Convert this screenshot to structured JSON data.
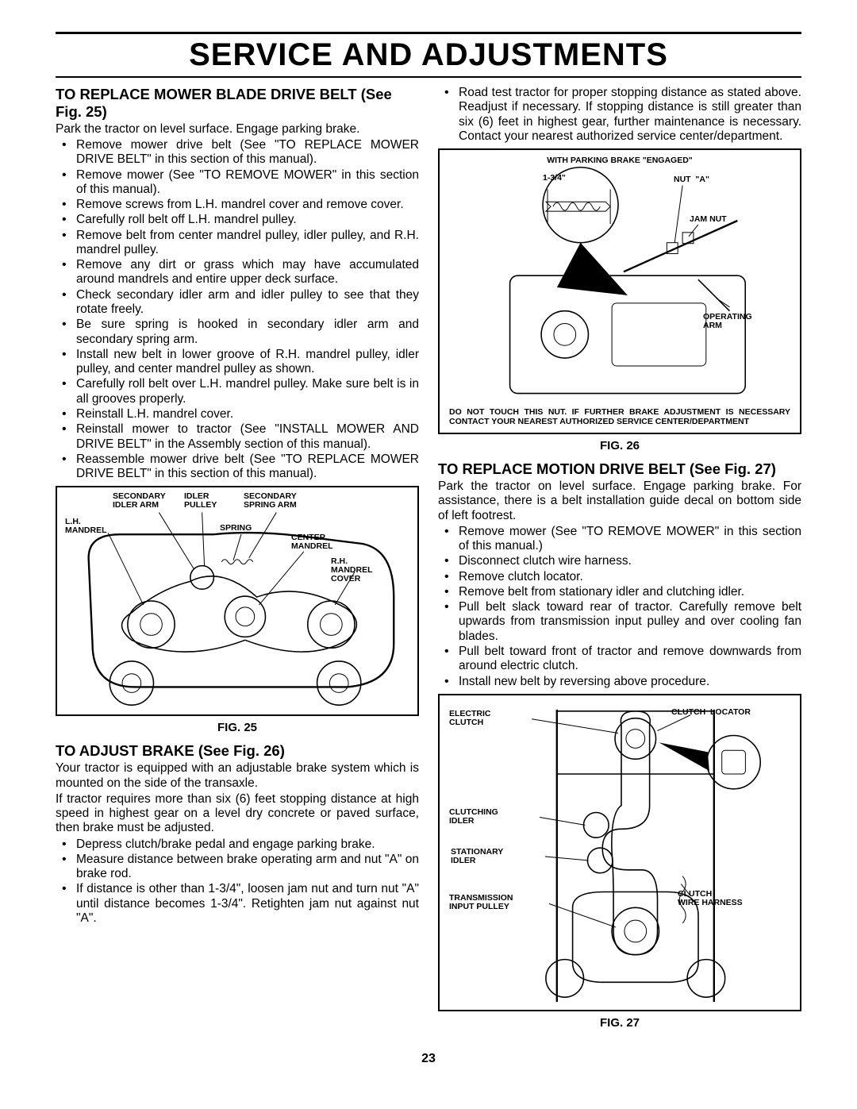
{
  "page": {
    "title": "Service And Adjustments",
    "number": "23"
  },
  "left": {
    "h1": "TO REPLACE MOWER BLADE DRIVE BELT (See Fig. 25)",
    "p1": "Park the tractor on level surface.  Engage parking brake.",
    "list1": [
      "Remove mower drive belt (See \"TO REPLACE MOWER DRIVE BELT\" in this section of this manual).",
      "Remove mower (See \"TO REMOVE MOWER\" in this section of this manual).",
      "Remove screws from L.H. mandrel cover and remove cover.",
      "Carefully roll belt off L.H. mandrel pulley.",
      "Remove belt from center mandrel pulley, idler pulley, and R.H. mandrel pulley.",
      "Remove any dirt or grass which may have accumulated around mandrels and entire upper deck surface.",
      "Check secondary idler arm and idler pulley to see that they rotate freely.",
      "Be sure spring is hooked in secondary idler arm and secondary spring arm.",
      "Install new belt in lower groove of R.H. mandrel pulley, idler pulley, and center mandrel pulley as shown.",
      "Carefully roll belt over L.H. mandrel pulley.  Make sure belt is in all grooves properly.",
      "Reinstall L.H. mandrel cover.",
      "Reinstall mower to tractor (See \"INSTALL MOWER AND DRIVE BELT\" in the Assembly section of this manual).",
      "Reassemble mower drive belt (See \"TO REPLACE MOWER DRIVE BELT\" in this section of this manual)."
    ],
    "fig25": {
      "caption": "FIG. 25",
      "labels": {
        "sec_idler_arm": "SECONDARY\nIDLER ARM",
        "idler_pulley": "IDLER\nPULLEY",
        "sec_spring_arm": "SECONDARY\nSPRING ARM",
        "lh_mandrel": "L.H.\nMANDREL",
        "spring": "SPRING",
        "center_mandrel": "CENTER\nMANDREL",
        "rh_mandrel_cover": "R.H.\nMANDREL\nCOVER"
      }
    },
    "h2": "TO ADJUST BRAKE (See Fig. 26)",
    "p2": "Your tractor is equipped with an adjustable brake system which is mounted on the side of the transaxle.",
    "p3": "If tractor requires more than six (6) feet stopping distance at high speed  in highest gear on a level dry concrete or paved surface, then brake must be adjusted.",
    "list2": [
      "Depress clutch/brake pedal and engage parking brake.",
      "Measure distance between brake operating arm and nut \"A\" on brake rod.",
      "If distance is other than 1-3/4\", loosen jam nut and turn nut \"A\" until distance becomes 1-3/4\".  Retighten jam nut against nut \"A\"."
    ]
  },
  "right": {
    "list0": [
      "Road test tractor for proper stopping distance as stated above.  Readjust if necessary.  If stopping distance is still greater than six (6) feet in highest gear, further maintenance is necessary.  Contact your nearest  authorized service center/department."
    ],
    "fig26": {
      "caption": "FIG. 26",
      "title": "WITH PARKING BRAKE \"ENGAGED\"",
      "labels": {
        "dim": "1-3/4\"",
        "nut_a": "NUT  \"A\"",
        "jam_nut": "JAM NUT",
        "operating_arm": "OPERATING\nARM"
      },
      "note": "DO NOT TOUCH THIS NUT.  IF FURTHER BRAKE ADJUSTMENT IS NECESSARY CONTACT YOUR NEAREST AUTHORIZED SERVICE CENTER/DEPARTMENT"
    },
    "h1": "TO REPLACE MOTION DRIVE BELT (See Fig. 27)",
    "p1": "Park the tractor on level surface.  Engage parking brake.  For assistance, there is a belt installation guide decal on bottom side of left footrest.",
    "list1": [
      "Remove mower (See \"TO REMOVE MOWER\" in this section of this manual.)",
      "Disconnect clutch wire harness.",
      "Remove clutch locator.",
      "Remove belt from stationary idler and clutching idler.",
      "Pull belt slack toward rear of tractor.  Carefully remove belt upwards from transmission input pulley and over cooling fan blades.",
      "Pull belt toward front of tractor and remove downwards from around electric clutch.",
      "Install new belt by reversing above procedure."
    ],
    "fig27": {
      "caption": "FIG. 27",
      "labels": {
        "electric_clutch": "ELECTRIC\nCLUTCH",
        "clutch_locator": "CLUTCH  LOCATOR",
        "clutching_idler": "CLUTCHING\nIDLER",
        "stationary_idler": "STATIONARY\nIDLER",
        "trans_input_pulley": "TRANSMISSION\nINPUT PULLEY",
        "clutch_wire_harness": "CLUTCH\nWIRE HARNESS"
      }
    }
  }
}
